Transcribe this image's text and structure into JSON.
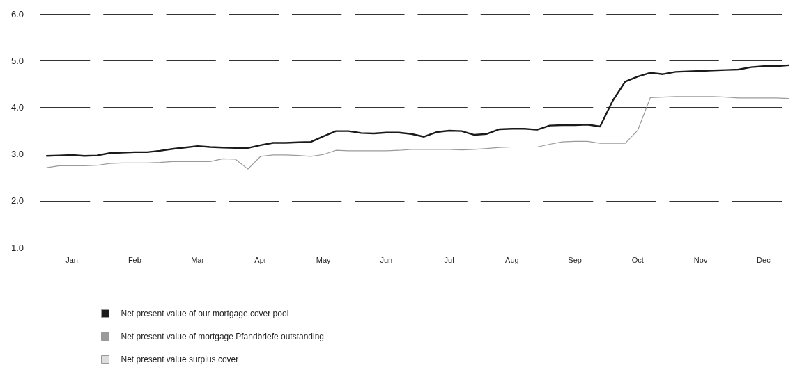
{
  "chart_data": {
    "type": "line",
    "categories": [
      null,
      null,
      "Jan",
      null,
      null,
      null,
      null,
      "Feb",
      null,
      null,
      null,
      null,
      "Mar",
      null,
      null,
      null,
      null,
      "Apr",
      null,
      null,
      null,
      null,
      "May",
      null,
      null,
      null,
      null,
      "Jun",
      null,
      null,
      null,
      null,
      "Jul",
      null,
      null,
      null,
      null,
      "Aug",
      null,
      null,
      null,
      null,
      "Sep",
      null,
      null,
      null,
      null,
      "Oct",
      null,
      null,
      null,
      null,
      "Nov",
      null,
      null,
      null,
      null,
      "Dec",
      null,
      null
    ],
    "series": [
      {
        "name": "Net present value of our mortgage cover pool",
        "color": "#1a1a1a",
        "values": [
          2.96,
          2.97,
          2.98,
          2.96,
          2.97,
          3.02,
          3.03,
          3.04,
          3.04,
          3.07,
          3.11,
          3.14,
          3.17,
          3.15,
          3.14,
          3.13,
          3.13,
          3.19,
          3.24,
          3.24,
          3.25,
          3.26,
          3.38,
          3.49,
          3.49,
          3.45,
          3.44,
          3.46,
          3.46,
          3.43,
          3.37,
          3.47,
          3.5,
          3.49,
          3.41,
          3.43,
          3.53,
          3.54,
          3.54,
          3.52,
          3.61,
          3.62,
          3.62,
          3.63,
          3.59,
          4.14,
          4.55,
          4.66,
          4.74,
          4.71,
          4.76,
          4.77,
          4.78,
          4.79,
          4.8,
          4.81,
          4.86,
          4.88,
          4.88,
          4.9
        ]
      },
      {
        "name": "Net present value of mortgage Pfandbriefe outstanding",
        "color": "#9a9a9a",
        "values": [
          2.71,
          2.75,
          2.75,
          2.75,
          2.76,
          2.8,
          2.81,
          2.81,
          2.81,
          2.82,
          2.84,
          2.84,
          2.84,
          2.84,
          2.9,
          2.89,
          2.68,
          2.95,
          2.98,
          2.98,
          2.97,
          2.95,
          2.99,
          3.08,
          3.07,
          3.07,
          3.07,
          3.07,
          3.08,
          3.1,
          3.1,
          3.1,
          3.1,
          3.09,
          3.1,
          3.12,
          3.14,
          3.15,
          3.15,
          3.15,
          3.21,
          3.26,
          3.27,
          3.27,
          3.23,
          3.23,
          3.23,
          3.51,
          4.21,
          4.22,
          4.23,
          4.23,
          4.23,
          4.23,
          4.22,
          4.2,
          4.2,
          4.2,
          4.2,
          4.19
        ]
      },
      {
        "name": "Net present value surplus cover",
        "color": "#dddddd",
        "values": [
          null,
          null,
          null,
          null,
          null,
          null,
          null,
          null,
          null,
          null,
          null,
          null,
          null,
          null,
          null,
          null,
          null,
          null,
          null,
          null,
          null,
          null,
          null,
          null,
          null,
          null,
          null,
          null,
          null,
          null,
          null,
          null,
          null,
          null,
          null,
          null,
          null,
          null,
          null,
          null,
          null,
          null,
          null,
          null,
          null,
          null,
          null,
          null,
          null,
          null,
          null,
          null,
          null,
          null,
          null,
          null,
          null,
          null,
          null,
          null
        ]
      }
    ],
    "ylim": [
      1,
      6
    ],
    "yticks": [
      {
        "value": 1,
        "label": "1.0"
      },
      {
        "value": 2,
        "label": "2.0"
      },
      {
        "value": 3,
        "label": "3.0"
      },
      {
        "value": 4,
        "label": "4.0"
      },
      {
        "value": 5,
        "label": "5.0"
      },
      {
        "value": 6,
        "label": "6.0"
      }
    ],
    "grid": "y",
    "legend": "bottom left",
    "marker": "none",
    "line_style": "solid"
  }
}
